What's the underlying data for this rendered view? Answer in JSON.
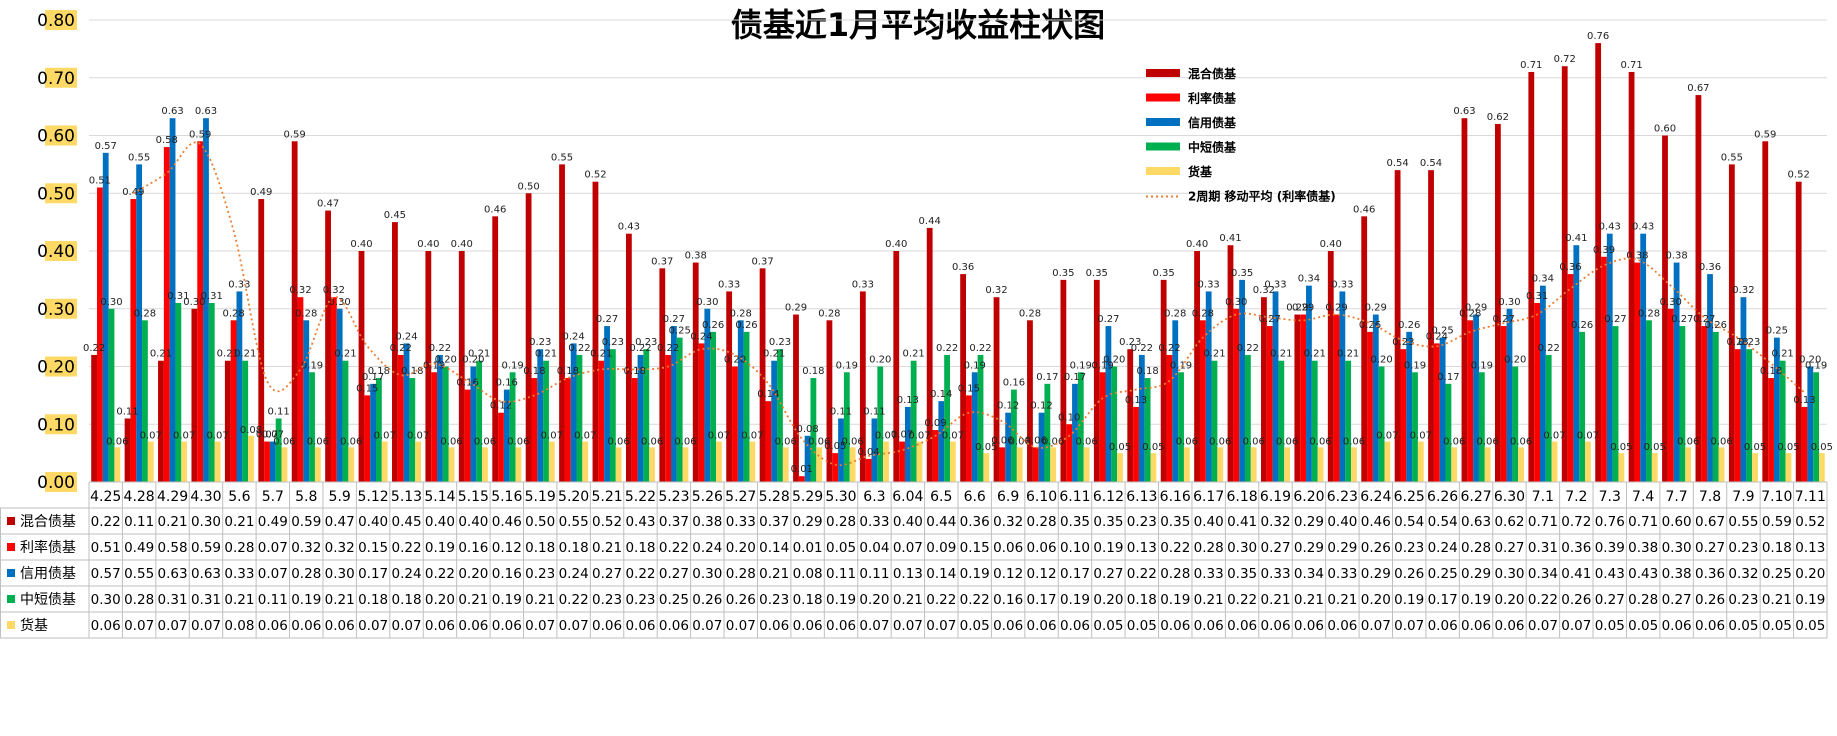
{
  "chart_data": {
    "type": "bar",
    "title": "债基近1月平均收益柱状图",
    "ylim": [
      0,
      0.8
    ],
    "yticks": [
      "0.00",
      "0.10",
      "0.20",
      "0.30",
      "0.40",
      "0.50",
      "0.60",
      "0.70",
      "0.80"
    ],
    "grid": true,
    "legend_position": "top-right",
    "categories": [
      "4.25",
      "4.28",
      "4.29",
      "4.30",
      "5.6",
      "5.7",
      "5.8",
      "5.9",
      "5.12",
      "5.13",
      "5.14",
      "5.15",
      "5.16",
      "5.19",
      "5.20",
      "5.21",
      "5.22",
      "5.23",
      "5.26",
      "5.27",
      "5.28",
      "5.29",
      "5.30",
      "6.3",
      "6.04",
      "6.5",
      "6.6",
      "6.9",
      "6.10",
      "6.11",
      "6.12",
      "6.13",
      "6.16",
      "6.17",
      "6.18",
      "6.19",
      "6.20",
      "6.23",
      "6.24",
      "6.25",
      "6.26",
      "6.27",
      "6.30",
      "7.1",
      "7.2",
      "7.3",
      "7.4",
      "7.7",
      "7.8",
      "7.9",
      "7.10",
      "7.11"
    ],
    "series": [
      {
        "name": "混合债基",
        "color": "#C00000",
        "values": [
          0.22,
          0.11,
          0.21,
          0.3,
          0.21,
          0.49,
          0.59,
          0.47,
          0.4,
          0.45,
          0.4,
          0.4,
          0.46,
          0.5,
          0.55,
          0.52,
          0.43,
          0.37,
          0.38,
          0.33,
          0.37,
          0.29,
          0.28,
          0.33,
          0.4,
          0.44,
          0.36,
          0.32,
          0.28,
          0.35,
          0.35,
          0.23,
          0.35,
          0.4,
          0.41,
          0.32,
          0.29,
          0.4,
          0.46,
          0.54,
          0.54,
          0.63,
          0.62,
          0.71,
          0.72,
          0.76,
          0.71,
          0.6,
          0.67,
          0.55,
          0.59,
          0.52
        ]
      },
      {
        "name": "利率债基",
        "color": "#FF0000",
        "values": [
          0.51,
          0.49,
          0.58,
          0.59,
          0.28,
          0.07,
          0.32,
          0.32,
          0.15,
          0.22,
          0.19,
          0.16,
          0.12,
          0.18,
          0.18,
          0.21,
          0.18,
          0.22,
          0.24,
          0.2,
          0.14,
          0.01,
          0.05,
          0.04,
          0.07,
          0.09,
          0.15,
          0.06,
          0.06,
          0.1,
          0.19,
          0.13,
          0.22,
          0.28,
          0.3,
          0.27,
          0.29,
          0.29,
          0.26,
          0.23,
          0.24,
          0.28,
          0.27,
          0.31,
          0.36,
          0.39,
          0.38,
          0.3,
          0.27,
          0.23,
          0.18,
          0.13
        ]
      },
      {
        "name": "信用债基",
        "color": "#0070C0",
        "values": [
          0.57,
          0.55,
          0.63,
          0.63,
          0.33,
          0.07,
          0.28,
          0.3,
          0.17,
          0.24,
          0.22,
          0.2,
          0.16,
          0.23,
          0.24,
          0.27,
          0.22,
          0.27,
          0.3,
          0.28,
          0.21,
          0.08,
          0.11,
          0.11,
          0.13,
          0.14,
          0.19,
          0.12,
          0.12,
          0.17,
          0.27,
          0.22,
          0.28,
          0.33,
          0.35,
          0.33,
          0.34,
          0.33,
          0.29,
          0.26,
          0.25,
          0.29,
          0.3,
          0.34,
          0.41,
          0.43,
          0.43,
          0.38,
          0.36,
          0.32,
          0.25,
          0.2
        ]
      },
      {
        "name": "中短债基",
        "color": "#00B050",
        "values": [
          0.3,
          0.28,
          0.31,
          0.31,
          0.21,
          0.11,
          0.19,
          0.21,
          0.18,
          0.18,
          0.2,
          0.21,
          0.19,
          0.21,
          0.22,
          0.23,
          0.23,
          0.25,
          0.26,
          0.26,
          0.23,
          0.18,
          0.19,
          0.2,
          0.21,
          0.22,
          0.22,
          0.16,
          0.17,
          0.19,
          0.2,
          0.18,
          0.19,
          0.21,
          0.22,
          0.21,
          0.21,
          0.21,
          0.2,
          0.19,
          0.17,
          0.19,
          0.2,
          0.22,
          0.26,
          0.27,
          0.28,
          0.27,
          0.26,
          0.23,
          0.21,
          0.19
        ]
      },
      {
        "name": "货基",
        "color": "#FFD966",
        "values": [
          0.06,
          0.07,
          0.07,
          0.07,
          0.08,
          0.06,
          0.06,
          0.06,
          0.07,
          0.07,
          0.06,
          0.06,
          0.06,
          0.07,
          0.07,
          0.06,
          0.06,
          0.06,
          0.07,
          0.07,
          0.06,
          0.06,
          0.06,
          0.07,
          0.07,
          0.07,
          0.05,
          0.06,
          0.06,
          0.06,
          0.05,
          0.05,
          0.06,
          0.06,
          0.06,
          0.06,
          0.06,
          0.06,
          0.07,
          0.07,
          0.06,
          0.06,
          0.06,
          0.07,
          0.07,
          0.05,
          0.05,
          0.06,
          0.06,
          0.05,
          0.05,
          0.05
        ]
      }
    ],
    "trendline": {
      "name": "2周期 移动平均 (利率债基)",
      "period": 2,
      "series_index": 1,
      "color": "#ED7D31",
      "style": "dotted"
    },
    "label_precision": 2
  }
}
